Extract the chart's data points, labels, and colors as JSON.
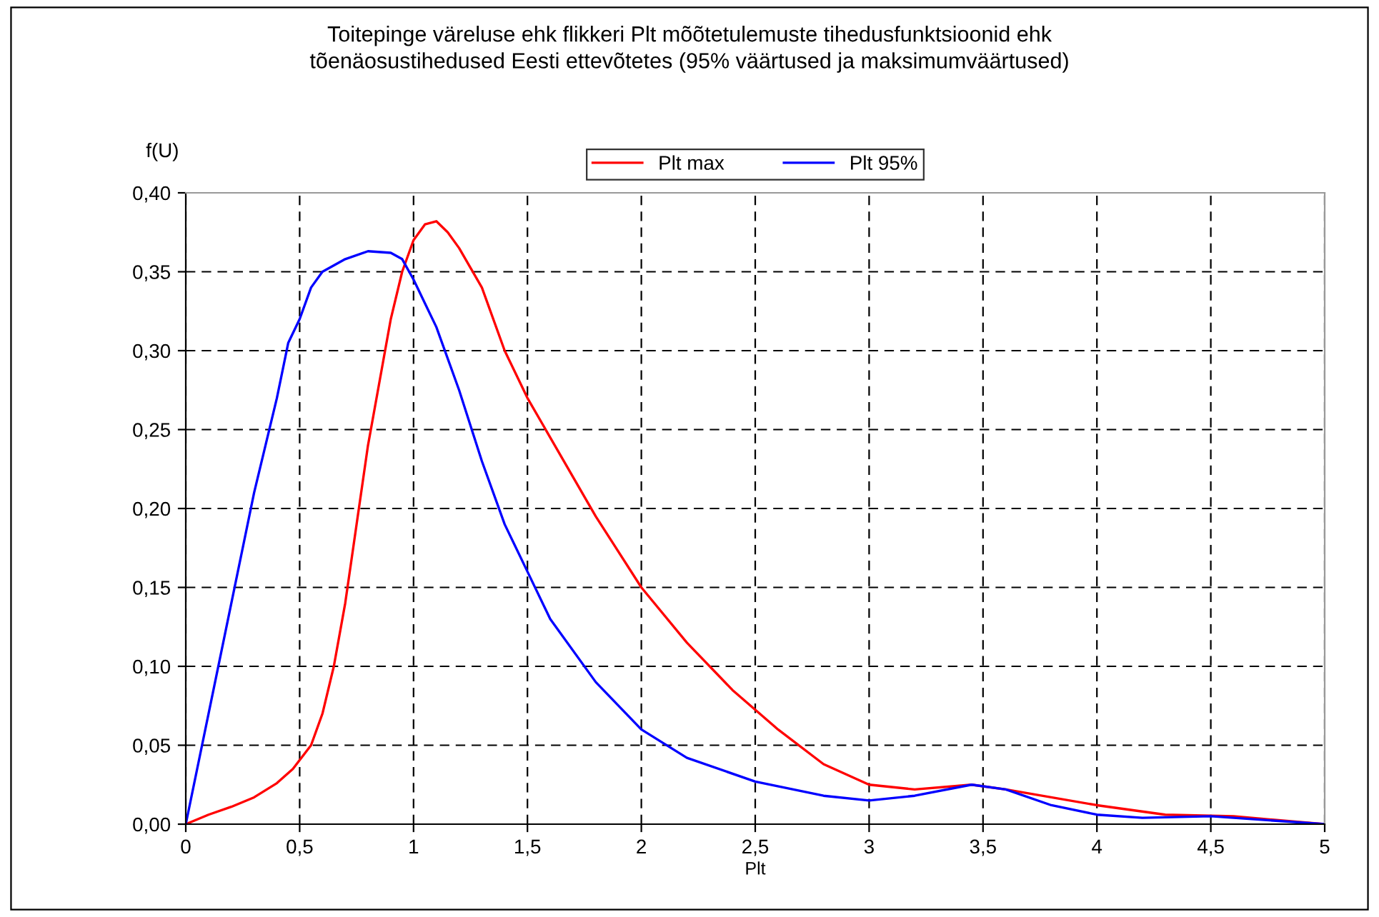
{
  "chart_data": {
    "type": "line",
    "title": "Toitepinge väreluse ehk flikkeri Plt mõõtetulemuste tihedusfunktsioonid ehk\ntõenäosustihedused Eesti ettevõtetes (95% väärtused ja maksimumväärtused)",
    "xlabel": "Plt",
    "ylabel": "f(U)",
    "series": [
      {
        "name": "Plt max",
        "color": "#ff0000",
        "x": [
          0,
          0.1,
          0.2,
          0.3,
          0.4,
          0.47,
          0.55,
          0.6,
          0.65,
          0.7,
          0.75,
          0.8,
          0.85,
          0.9,
          0.95,
          1.0,
          1.05,
          1.1,
          1.15,
          1.2,
          1.3,
          1.4,
          1.5,
          1.6,
          1.8,
          2.0,
          2.2,
          2.4,
          2.6,
          2.8,
          3.0,
          3.2,
          3.45,
          3.6,
          4.0,
          4.3,
          4.6,
          5.0
        ],
        "values": [
          0,
          0.006,
          0.011,
          0.017,
          0.026,
          0.035,
          0.05,
          0.07,
          0.1,
          0.14,
          0.19,
          0.24,
          0.28,
          0.32,
          0.35,
          0.37,
          0.38,
          0.382,
          0.375,
          0.365,
          0.34,
          0.3,
          0.27,
          0.245,
          0.195,
          0.15,
          0.115,
          0.085,
          0.06,
          0.038,
          0.025,
          0.022,
          0.025,
          0.022,
          0.012,
          0.006,
          0.005,
          0
        ]
      },
      {
        "name": "Plt 95%",
        "color": "#0000ff",
        "x": [
          0,
          0.1,
          0.2,
          0.3,
          0.4,
          0.45,
          0.5,
          0.55,
          0.6,
          0.7,
          0.8,
          0.9,
          0.95,
          1.0,
          1.05,
          1.1,
          1.2,
          1.3,
          1.4,
          1.5,
          1.6,
          1.8,
          2.0,
          2.2,
          2.5,
          2.8,
          3.0,
          3.2,
          3.45,
          3.6,
          3.8,
          4.0,
          4.2,
          4.5,
          5.0
        ],
        "values": [
          0,
          0.07,
          0.14,
          0.21,
          0.27,
          0.305,
          0.32,
          0.34,
          0.35,
          0.358,
          0.363,
          0.362,
          0.358,
          0.345,
          0.33,
          0.315,
          0.275,
          0.23,
          0.19,
          0.16,
          0.13,
          0.09,
          0.06,
          0.042,
          0.027,
          0.018,
          0.015,
          0.018,
          0.025,
          0.022,
          0.012,
          0.006,
          0.004,
          0.005,
          0
        ]
      }
    ],
    "xlim": [
      0,
      5
    ],
    "ylim": [
      0,
      0.4
    ],
    "xticks": [
      0,
      {
        "value": 0.5,
        "label": "0,5"
      },
      1,
      {
        "value": 1.5,
        "label": "1,5"
      },
      2,
      {
        "value": 2.5,
        "label": "2,5"
      },
      3,
      {
        "value": 3.5,
        "label": "3,5"
      },
      4,
      {
        "value": 4.5,
        "label": "4,5"
      },
      5
    ],
    "yticks": [
      {
        "value": 0,
        "label": "0,00"
      },
      {
        "value": 0.05,
        "label": "0,05"
      },
      {
        "value": 0.1,
        "label": "0,10"
      },
      {
        "value": 0.15,
        "label": "0,15"
      },
      {
        "value": 0.2,
        "label": "0,20"
      },
      {
        "value": 0.25,
        "label": "0,25"
      },
      {
        "value": 0.3,
        "label": "0,30"
      },
      {
        "value": 0.35,
        "label": "0,35"
      },
      {
        "value": 0.4,
        "label": "0,40"
      }
    ],
    "grid": true,
    "legend": "top",
    "marker": "none",
    "line_style": "solid"
  }
}
